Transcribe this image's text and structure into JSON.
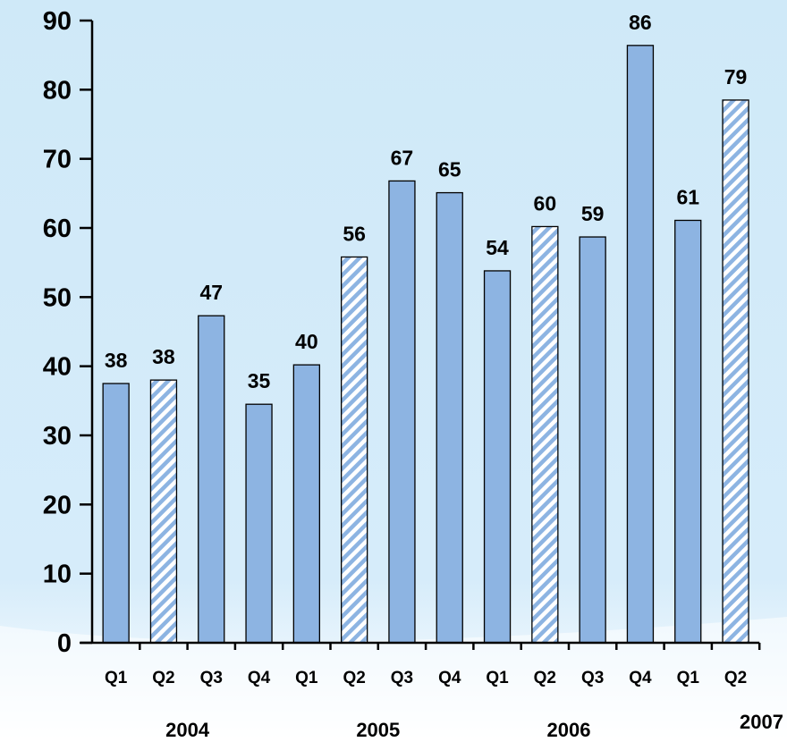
{
  "chart_data": {
    "type": "bar",
    "categories": [
      "Q1",
      "Q2",
      "Q3",
      "Q4",
      "Q1",
      "Q2",
      "Q3",
      "Q4",
      "Q1",
      "Q2",
      "Q3",
      "Q4",
      "Q1",
      "Q2"
    ],
    "groups": [
      {
        "label": "2004",
        "start": 0,
        "count": 4
      },
      {
        "label": "2005",
        "start": 4,
        "count": 4
      },
      {
        "label": "2006",
        "start": 8,
        "count": 4
      },
      {
        "label": "2007",
        "start": 12,
        "count": 2
      }
    ],
    "values": [
      37.5,
      38,
      47.3,
      34.5,
      40.2,
      55.8,
      66.8,
      65.1,
      53.8,
      60.2,
      58.7,
      86.4,
      61.1,
      78.5
    ],
    "data_labels": [
      "38",
      "38",
      "47",
      "35",
      "40",
      "56",
      "67",
      "65",
      "54",
      "60",
      "59",
      "86",
      "61",
      "79"
    ],
    "hatched": [
      false,
      true,
      false,
      false,
      false,
      true,
      false,
      false,
      false,
      true,
      false,
      false,
      false,
      true
    ],
    "ylim": [
      0,
      90
    ],
    "yticks": [
      0,
      10,
      20,
      30,
      40,
      50,
      60,
      70,
      80,
      90
    ],
    "title": "",
    "xlabel": "",
    "ylabel": "",
    "grid": false,
    "colors": {
      "bar": "#8db4e2",
      "hatch_bg": "#ffffff",
      "hatch_line": "#8db4e2",
      "background_top": "#cfe9f8",
      "background_bottom": "#ffffff",
      "axis": "#000000"
    }
  }
}
